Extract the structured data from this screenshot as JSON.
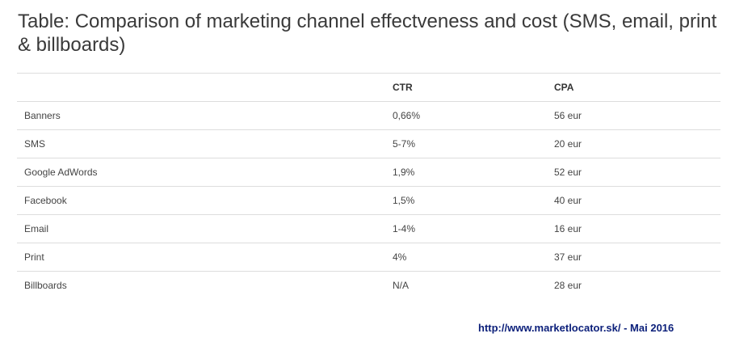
{
  "title": "Table: Comparison of marketing channel effectveness and cost (SMS, email, print & billboards)",
  "table": {
    "headers": [
      "",
      "CTR",
      "CPA"
    ],
    "rows": [
      [
        "Banners",
        "0,66%",
        "56 eur"
      ],
      [
        "SMS",
        "5-7%",
        "20 eur"
      ],
      [
        "Google AdWords",
        "1,9%",
        "52 eur"
      ],
      [
        "Facebook",
        "1,5%",
        "40 eur"
      ],
      [
        "Email",
        "1-4%",
        "16 eur"
      ],
      [
        "Print",
        "4%",
        "37 eur"
      ],
      [
        "Billboards",
        "N/A",
        "28 eur"
      ]
    ]
  },
  "source": "http://www.marketlocator.sk/ - Mai 2016",
  "colors": {
    "title": "#3a3a3a",
    "source": "#0b1f7a",
    "rule": "#dddddd"
  }
}
